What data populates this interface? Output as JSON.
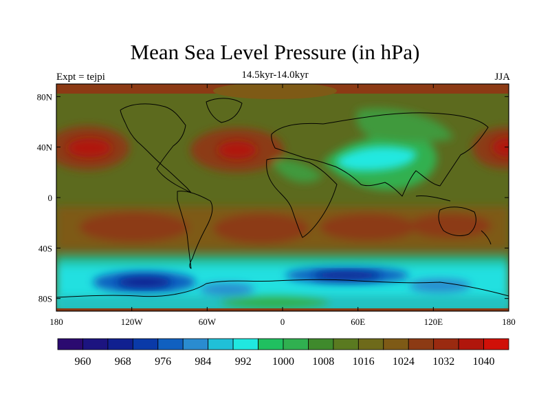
{
  "title": "Mean Sea Level Pressure (in hPa)",
  "subtitle": "14.5kyr-14.0kyr",
  "left_label": "Expt = tejpi",
  "right_label": "JJA",
  "x_ticks": [
    "180",
    "120W",
    "60W",
    "0",
    "60E",
    "120E",
    "180"
  ],
  "y_ticks": [
    "80N",
    "40N",
    "0",
    "40S",
    "80S"
  ],
  "colorbar": {
    "labels": [
      "960",
      "968",
      "976",
      "984",
      "992",
      "1000",
      "1008",
      "1016",
      "1024",
      "1032",
      "1040"
    ],
    "colors": [
      "#2b0a70",
      "#1c1480",
      "#102090",
      "#0a3aa8",
      "#1060c0",
      "#2a8cd0",
      "#20c0d8",
      "#20e8e0",
      "#20c060",
      "#30b050",
      "#3f8a2c",
      "#5a7a20",
      "#6e6a1a",
      "#7e5a16",
      "#8c3a14",
      "#9a2a10",
      "#b0160c",
      "#d01008"
    ]
  },
  "field_colors": {
    "ocean_mid": "#5a6e1e",
    "high_orange": "#8c3a14",
    "high_red": "#b0160c",
    "low_cyan": "#20e8e0",
    "low_blue": "#1060c0",
    "green": "#30b050"
  }
}
